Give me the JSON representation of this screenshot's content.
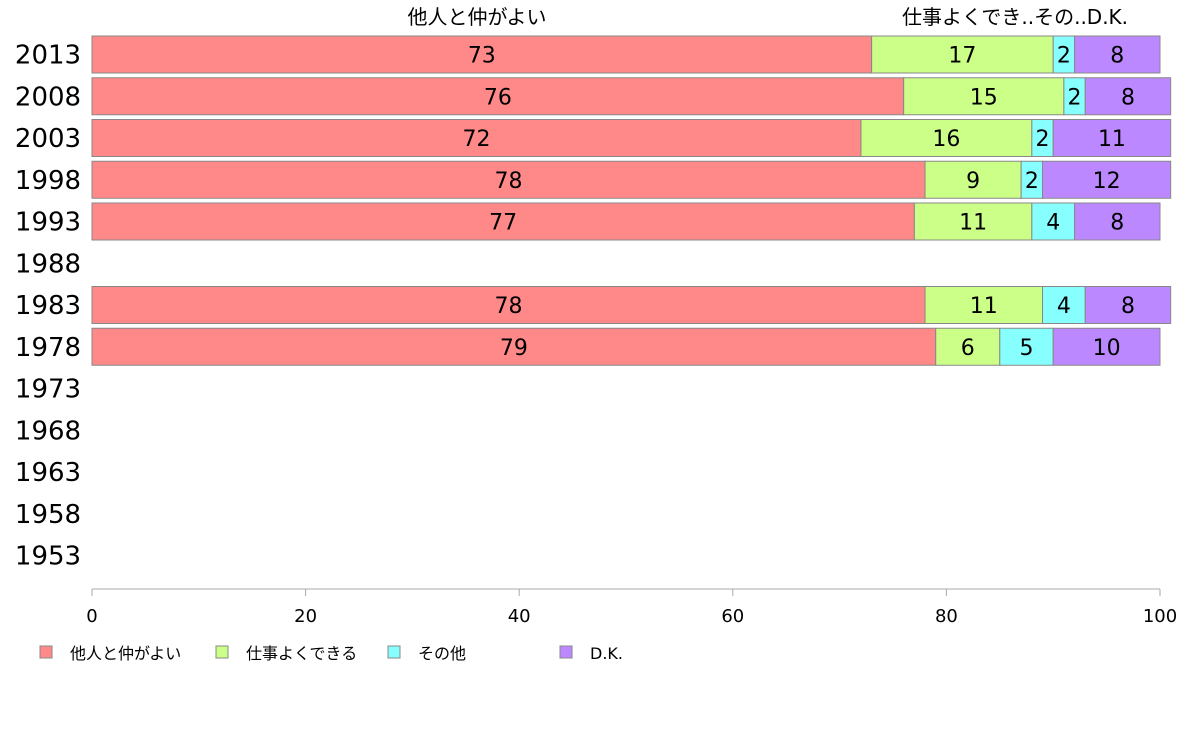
{
  "chart_data": {
    "type": "bar",
    "orientation": "horizontal",
    "stacked": true,
    "categories": [
      "2013",
      "2008",
      "2003",
      "1998",
      "1993",
      "1988",
      "1983",
      "1978",
      "1973",
      "1968",
      "1963",
      "1958",
      "1953"
    ],
    "series": [
      {
        "name": "他人と仲がよい",
        "color": "#ff8888",
        "values": [
          73,
          76,
          72,
          78,
          77,
          null,
          78,
          79,
          null,
          null,
          null,
          null,
          null
        ]
      },
      {
        "name": "仕事よくできる",
        "color": "#ccff88",
        "values": [
          17,
          15,
          16,
          9,
          11,
          null,
          11,
          6,
          null,
          null,
          null,
          null,
          null
        ]
      },
      {
        "name": "その他",
        "color": "#88ffff",
        "values": [
          2,
          2,
          2,
          2,
          4,
          null,
          4,
          5,
          null,
          null,
          null,
          null,
          null
        ]
      },
      {
        "name": "D.K.",
        "color": "#bb88ff",
        "values": [
          8,
          8,
          11,
          12,
          8,
          null,
          8,
          10,
          null,
          null,
          null,
          null,
          null
        ]
      }
    ],
    "top_labels": [
      "他人と仲がよい",
      "仕事よくでき..その..D.K."
    ],
    "xlim": [
      0,
      100
    ],
    "xticks": [
      "0",
      "20",
      "40",
      "60",
      "80",
      "100"
    ],
    "grid": false,
    "legend_position": "bottom"
  }
}
